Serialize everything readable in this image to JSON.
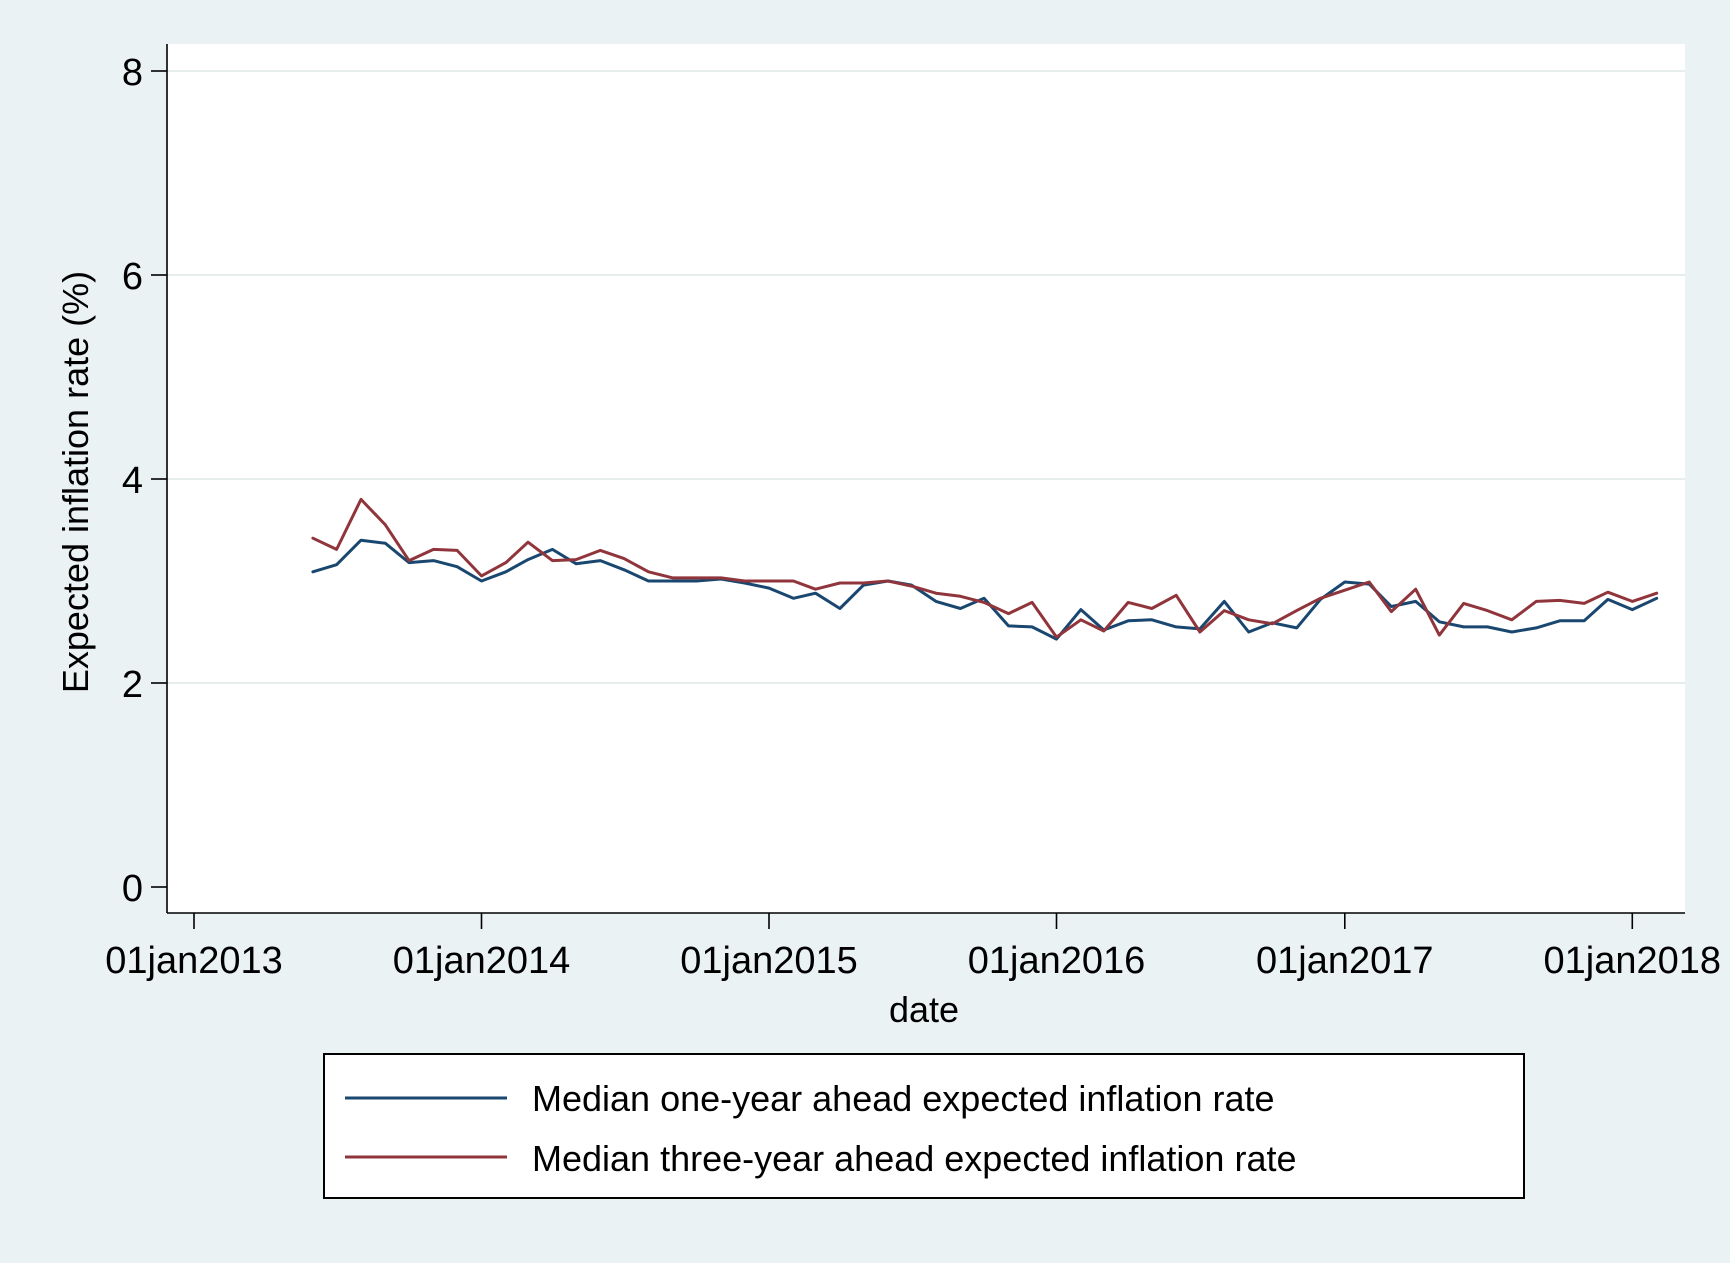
{
  "chart_data": {
    "type": "line",
    "title": "",
    "xlabel": "date",
    "ylabel": "Expected inflation rate (%)",
    "ylim": [
      0,
      8
    ],
    "yticks": [
      0,
      2,
      4,
      6,
      8
    ],
    "xlim": [
      "2013-01-01",
      "2018-03-01"
    ],
    "xticks": [
      {
        "date": "2013-01-01",
        "label": "01jan2013"
      },
      {
        "date": "2014-01-01",
        "label": "01jan2014"
      },
      {
        "date": "2015-01-01",
        "label": "01jan2015"
      },
      {
        "date": "2016-01-01",
        "label": "01jan2016"
      },
      {
        "date": "2017-01-01",
        "label": "01jan2017"
      },
      {
        "date": "2018-01-01",
        "label": "01jan2018"
      }
    ],
    "grid": "horizontal",
    "legend_position": "bottom",
    "x": [
      "2013-06",
      "2013-07",
      "2013-08",
      "2013-09",
      "2013-10",
      "2013-11",
      "2013-12",
      "2014-01",
      "2014-02",
      "2014-03",
      "2014-04",
      "2014-05",
      "2014-06",
      "2014-07",
      "2014-08",
      "2014-09",
      "2014-10",
      "2014-11",
      "2014-12",
      "2015-01",
      "2015-02",
      "2015-03",
      "2015-04",
      "2015-05",
      "2015-06",
      "2015-07",
      "2015-08",
      "2015-09",
      "2015-10",
      "2015-11",
      "2015-12",
      "2016-01",
      "2016-02",
      "2016-03",
      "2016-04",
      "2016-05",
      "2016-06",
      "2016-07",
      "2016-08",
      "2016-09",
      "2016-10",
      "2016-11",
      "2016-12",
      "2017-01",
      "2017-02",
      "2017-03",
      "2017-04",
      "2017-05",
      "2017-06",
      "2017-07",
      "2017-08",
      "2017-09",
      "2017-10",
      "2017-11",
      "2017-12",
      "2018-01",
      "2018-02"
    ],
    "series": [
      {
        "name": "Median one-year ahead expected inflation rate",
        "color": "#1a476f",
        "values": [
          3.09,
          3.16,
          3.4,
          3.37,
          3.18,
          3.2,
          3.14,
          3.0,
          3.09,
          3.21,
          3.31,
          3.17,
          3.2,
          3.11,
          3.0,
          3.0,
          3.0,
          3.02,
          2.98,
          2.93,
          2.83,
          2.88,
          2.73,
          2.96,
          3.0,
          2.96,
          2.8,
          2.73,
          2.83,
          2.56,
          2.55,
          2.43,
          2.72,
          2.52,
          2.61,
          2.62,
          2.55,
          2.53,
          2.8,
          2.5,
          2.59,
          2.54,
          2.82,
          2.99,
          2.97,
          2.75,
          2.8,
          2.6,
          2.55,
          2.55,
          2.5,
          2.54,
          2.61,
          2.61,
          2.82,
          2.72,
          2.83
        ]
      },
      {
        "name": "Median three-year ahead expected inflation rate",
        "color": "#90353b",
        "values": [
          3.42,
          3.31,
          3.8,
          3.55,
          3.2,
          3.31,
          3.3,
          3.05,
          3.18,
          3.38,
          3.2,
          3.21,
          3.3,
          3.22,
          3.09,
          3.03,
          3.03,
          3.03,
          3.0,
          3.0,
          3.0,
          2.92,
          2.98,
          2.98,
          3.0,
          2.95,
          2.88,
          2.85,
          2.79,
          2.68,
          2.79,
          2.45,
          2.62,
          2.51,
          2.79,
          2.73,
          2.86,
          2.5,
          2.71,
          2.62,
          2.58,
          2.71,
          2.83,
          2.91,
          2.99,
          2.7,
          2.92,
          2.47,
          2.78,
          2.71,
          2.62,
          2.8,
          2.81,
          2.78,
          2.89,
          2.8,
          2.88
        ]
      }
    ]
  }
}
